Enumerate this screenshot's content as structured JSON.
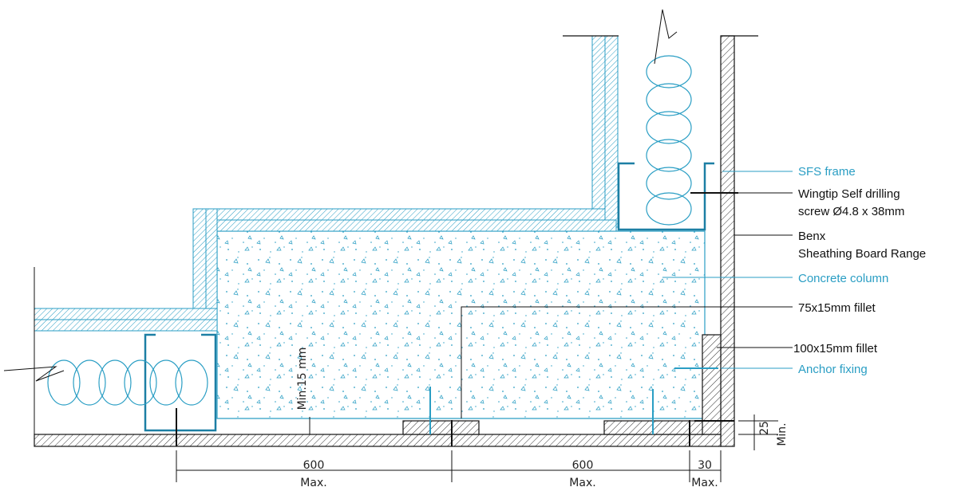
{
  "labels": {
    "sfs_frame": "SFS frame",
    "wingtip_line1": "Wingtip Self drilling",
    "wingtip_line2": "screw Ø4.8 x 38mm",
    "benx_line1": "Benx",
    "benx_line2": "Sheathing Board Range",
    "concrete_column": "Concrete column",
    "fillet_75": "75x15mm fillet",
    "fillet_100": "100x15mm fillet",
    "anchor_fixing": "Anchor fixing",
    "min_15": "Min.15 mm"
  },
  "dimensions": {
    "d1_value": "600",
    "d1_note": "Max.",
    "d2_value": "600",
    "d2_note": "Max.",
    "d3_value": "30",
    "d3_note": "Max.",
    "d4_value": "25",
    "d4_note": "Min."
  },
  "colors": {
    "blue": "#2a9ec4",
    "black": "#111111"
  }
}
